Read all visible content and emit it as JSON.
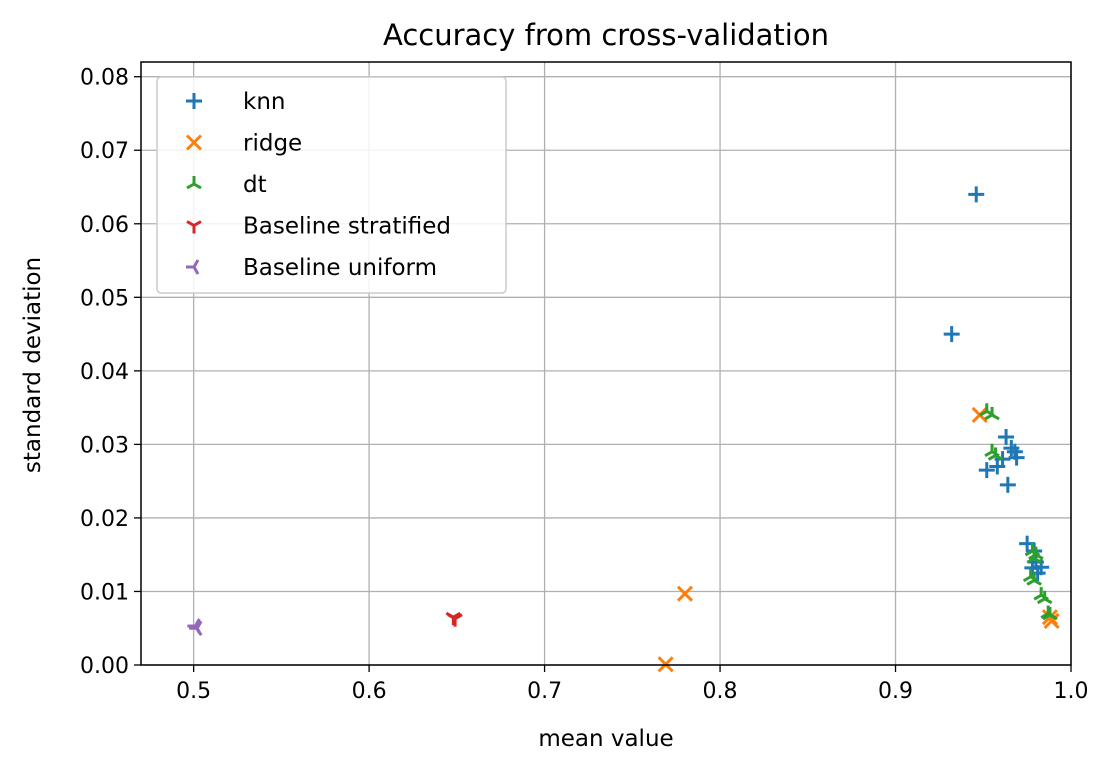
{
  "chart_data": {
    "type": "scatter",
    "title": "Accuracy from cross-validation",
    "xlabel": "mean value",
    "ylabel": "standard deviation",
    "xlim": [
      0.47,
      1.0
    ],
    "ylim": [
      0.0,
      0.082
    ],
    "xticks": [
      "0.5",
      "0.6",
      "0.7",
      "0.8",
      "0.9",
      "1.0"
    ],
    "yticks": [
      "0.00",
      "0.01",
      "0.02",
      "0.03",
      "0.04",
      "0.05",
      "0.06",
      "0.07",
      "0.08"
    ],
    "grid": true,
    "legend_position": "top-left",
    "series": [
      {
        "name": "knn",
        "marker": "plus",
        "color": "#1f77b4",
        "points": [
          [
            0.946,
            0.064
          ],
          [
            0.932,
            0.045
          ],
          [
            0.963,
            0.031
          ],
          [
            0.966,
            0.0295
          ],
          [
            0.968,
            0.029
          ],
          [
            0.969,
            0.0282
          ],
          [
            0.961,
            0.028
          ],
          [
            0.958,
            0.027
          ],
          [
            0.952,
            0.0265
          ],
          [
            0.964,
            0.0245
          ],
          [
            0.975,
            0.0165
          ],
          [
            0.979,
            0.0155
          ],
          [
            0.98,
            0.014
          ],
          [
            0.983,
            0.0133
          ],
          [
            0.978,
            0.0132
          ],
          [
            0.981,
            0.0125
          ]
        ]
      },
      {
        "name": "ridge",
        "marker": "x",
        "color": "#ff7f0e",
        "points": [
          [
            0.948,
            0.034
          ],
          [
            0.78,
            0.0097
          ],
          [
            0.769,
            0.0001
          ],
          [
            0.988,
            0.0065
          ],
          [
            0.989,
            0.006
          ]
        ]
      },
      {
        "name": "dt",
        "marker": "tri_down",
        "color": "#2ca02c",
        "points": [
          [
            0.952,
            0.0345
          ],
          [
            0.955,
            0.034
          ],
          [
            0.955,
            0.029
          ],
          [
            0.957,
            0.0285
          ],
          [
            0.978,
            0.0155
          ],
          [
            0.98,
            0.015
          ],
          [
            0.979,
            0.0145
          ],
          [
            0.977,
            0.012
          ],
          [
            0.979,
            0.0115
          ],
          [
            0.983,
            0.0095
          ],
          [
            0.985,
            0.009
          ],
          [
            0.987,
            0.007
          ],
          [
            0.988,
            0.0068
          ]
        ]
      },
      {
        "name": "Baseline stratified",
        "marker": "tri_up",
        "color": "#d62728",
        "points": [
          [
            0.648,
            0.0065
          ],
          [
            0.649,
            0.0063
          ]
        ]
      },
      {
        "name": "Baseline uniform",
        "marker": "tri_left",
        "color": "#9467bd",
        "points": [
          [
            0.501,
            0.0053
          ],
          [
            0.502,
            0.005
          ]
        ]
      }
    ]
  }
}
